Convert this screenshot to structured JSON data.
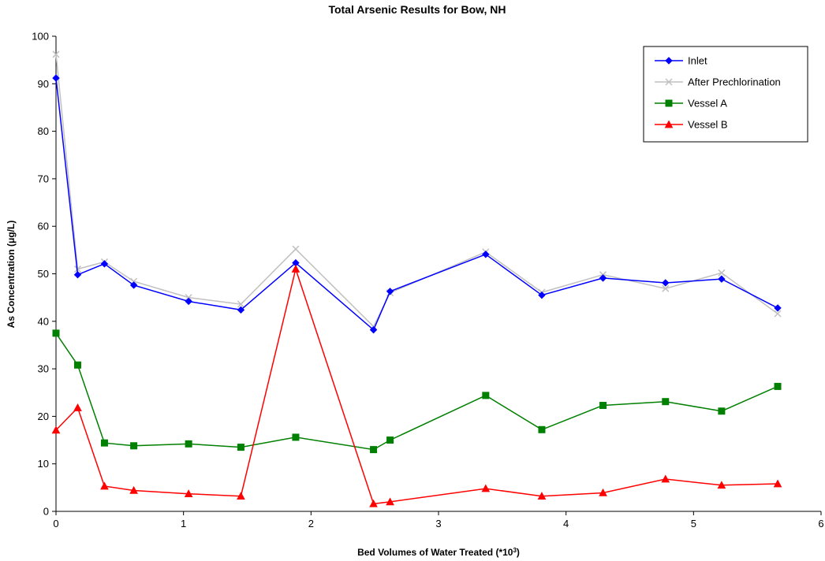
{
  "chart_data": {
    "type": "line",
    "title": "Total Arsenic Results for Bow, NH",
    "xlabel": "Bed Volumes of Water Treated (*10",
    "xlabel_sup": "3",
    "xlabel_end": ")",
    "ylabel": "As Concentration (μg/L)",
    "xlim": [
      0,
      6
    ],
    "ylim": [
      0,
      100
    ],
    "xticks": [
      "0",
      "1",
      "2",
      "3",
      "4",
      "5",
      "6"
    ],
    "yticks": [
      "0",
      "10",
      "20",
      "30",
      "40",
      "50",
      "60",
      "70",
      "80",
      "90",
      "100"
    ],
    "grid": false,
    "legend_position": "top-right",
    "series": [
      {
        "name": "Inlet",
        "color": "#0000ff",
        "marker": "diamond",
        "points": [
          [
            0,
            91.2
          ],
          [
            0.17,
            49.8
          ],
          [
            0.38,
            52.1
          ],
          [
            0.61,
            47.6
          ],
          [
            1.04,
            44.2
          ],
          [
            1.45,
            42.4
          ],
          [
            1.88,
            52.3
          ],
          [
            2.49,
            38.2
          ],
          [
            2.62,
            46.3
          ],
          [
            3.37,
            54.1
          ],
          [
            3.81,
            45.5
          ],
          [
            4.29,
            49.1
          ],
          [
            4.78,
            48.1
          ],
          [
            5.22,
            48.9
          ],
          [
            5.66,
            42.8
          ]
        ]
      },
      {
        "name": "After Prechlorination",
        "color": "#c0c0c0",
        "marker": "x",
        "points": [
          [
            0,
            96.2
          ],
          [
            0.17,
            51.0
          ],
          [
            0.38,
            52.5
          ],
          [
            0.61,
            48.4
          ],
          [
            1.04,
            45.0
          ],
          [
            1.45,
            43.6
          ],
          [
            1.88,
            55.2
          ],
          [
            2.49,
            38.9
          ],
          [
            2.62,
            46.0
          ],
          [
            3.37,
            54.6
          ],
          [
            3.81,
            46.1
          ],
          [
            4.29,
            49.8
          ],
          [
            4.78,
            46.9
          ],
          [
            5.22,
            50.2
          ],
          [
            5.66,
            41.6
          ]
        ]
      },
      {
        "name": "Vessel A",
        "color": "#008000",
        "marker": "square",
        "points": [
          [
            0,
            37.5
          ],
          [
            0.17,
            30.8
          ],
          [
            0.38,
            14.4
          ],
          [
            0.61,
            13.8
          ],
          [
            1.04,
            14.2
          ],
          [
            1.45,
            13.5
          ],
          [
            1.88,
            15.6
          ],
          [
            2.49,
            13.0
          ],
          [
            2.62,
            15.0
          ],
          [
            3.37,
            24.4
          ],
          [
            3.81,
            17.2
          ],
          [
            4.29,
            22.3
          ],
          [
            4.78,
            23.1
          ],
          [
            5.22,
            21.1
          ],
          [
            5.66,
            26.3
          ]
        ]
      },
      {
        "name": "Vessel B",
        "color": "#ff0000",
        "marker": "triangle",
        "points": [
          [
            0,
            17.1
          ],
          [
            0.17,
            21.8
          ],
          [
            0.38,
            5.3
          ],
          [
            0.61,
            4.4
          ],
          [
            1.04,
            3.7
          ],
          [
            1.45,
            3.2
          ],
          [
            1.88,
            51.0
          ],
          [
            2.49,
            1.6
          ],
          [
            2.62,
            2.0
          ],
          [
            3.37,
            4.8
          ],
          [
            3.81,
            3.2
          ],
          [
            4.29,
            3.9
          ],
          [
            4.78,
            6.8
          ],
          [
            5.22,
            5.5
          ],
          [
            5.66,
            5.8
          ]
        ]
      }
    ]
  }
}
